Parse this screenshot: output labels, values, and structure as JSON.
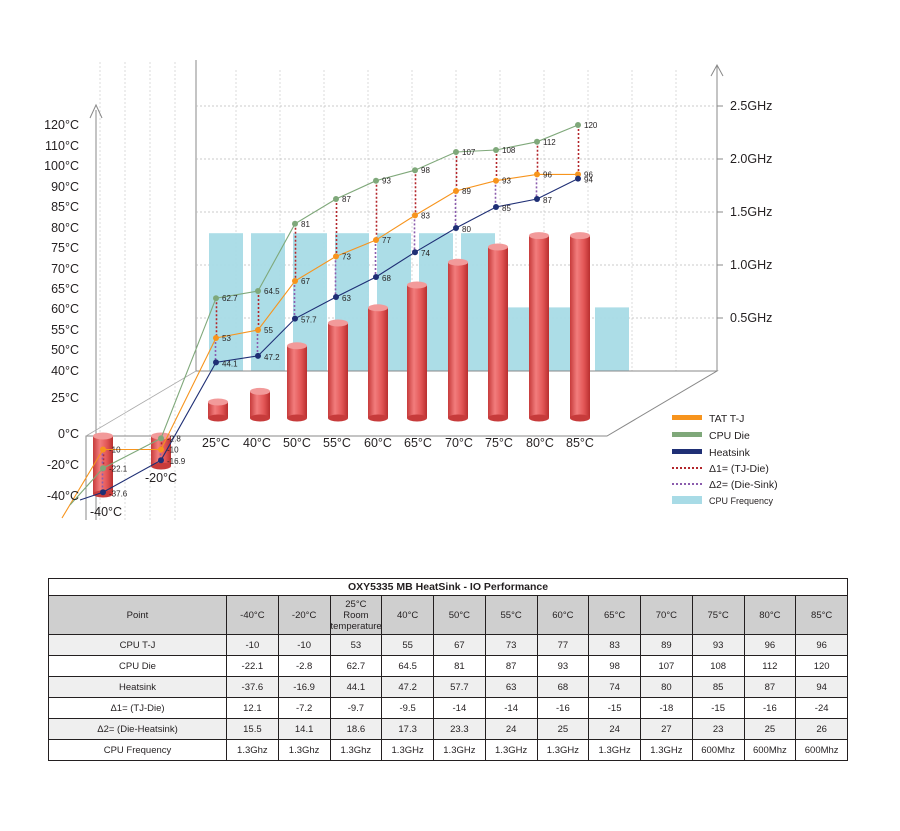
{
  "chart_data": {
    "type": "line",
    "categories": [
      "-40°C",
      "-20°C",
      "25°C",
      "40°C",
      "50°C",
      "55°C",
      "60°C",
      "65°C",
      "70°C",
      "75°C",
      "80°C",
      "85°C"
    ],
    "yticks": [
      "120°C",
      "110°C",
      "100°C",
      "90°C",
      "85°C",
      "80°C",
      "75°C",
      "70°C",
      "65°C",
      "60°C",
      "55°C",
      "50°C",
      "40°C",
      "25°C",
      "0°C",
      "-20°C",
      "-40°C"
    ],
    "ytick_values": [
      120,
      110,
      100,
      90,
      85,
      80,
      75,
      70,
      65,
      60,
      55,
      50,
      40,
      25,
      0,
      -20,
      -40
    ],
    "y2ticks": [
      "2.5GHz",
      "2.0GHz",
      "1.5GHz",
      "1.0GHz",
      "0.5GHz"
    ],
    "y2tick_values": [
      2.5,
      2.0,
      1.5,
      1.0,
      0.5
    ],
    "series": [
      {
        "name": "TAT T-J",
        "color": "#f7941d",
        "values": [
          -10,
          -10,
          53,
          55,
          67,
          73,
          77,
          83,
          89,
          93,
          96,
          96
        ]
      },
      {
        "name": "CPU Die",
        "color": "#7fa87a",
        "values": [
          -22.1,
          -2.8,
          62.7,
          64.5,
          81,
          87,
          93,
          98,
          107,
          108,
          112,
          120
        ]
      },
      {
        "name": "Heatsink",
        "color": "#1f2f75",
        "values": [
          -37.6,
          -16.9,
          44.1,
          47.2,
          57.7,
          63,
          68,
          74,
          80,
          85,
          87,
          94
        ]
      }
    ],
    "delta1": {
      "name": "Δ1= (TJ-Die)",
      "color": "#b3262b"
    },
    "delta2": {
      "name": "Δ2= (Die-Sink)",
      "color": "#8b5cad"
    },
    "frequency": {
      "name": "CPU Frequency",
      "color": "#a8dbe6",
      "values_ghz": [
        1.3,
        1.3,
        1.3,
        1.3,
        1.3,
        1.3,
        1.3,
        1.3,
        1.3,
        0.6,
        0.6,
        0.6
      ]
    },
    "cylinder_color": "#e25555",
    "legend_position": "right"
  },
  "table": {
    "title": "OXY5335 MB HeatSink - IO Performance",
    "headers": [
      "Point",
      "-40°C",
      "-20°C",
      "25°C\nRoom\ntemperature",
      "40°C",
      "50°C",
      "55°C",
      "60°C",
      "65°C",
      "70°C",
      "75°C",
      "80°C",
      "85°C"
    ],
    "rows": [
      [
        "CPU T-J",
        "-10",
        "-10",
        "53",
        "55",
        "67",
        "73",
        "77",
        "83",
        "89",
        "93",
        "96",
        "96"
      ],
      [
        "CPU Die",
        "-22.1",
        "-2.8",
        "62.7",
        "64.5",
        "81",
        "87",
        "93",
        "98",
        "107",
        "108",
        "112",
        "120"
      ],
      [
        "Heatsink",
        "-37.6",
        "-16.9",
        "44.1",
        "47.2",
        "57.7",
        "63",
        "68",
        "74",
        "80",
        "85",
        "87",
        "94"
      ],
      [
        "Δ1= (TJ-Die)",
        "12.1",
        "-7.2",
        "-9.7",
        "-9.5",
        "-14",
        "-14",
        "-16",
        "-15",
        "-18",
        "-15",
        "-16",
        "-24"
      ],
      [
        "Δ2= (Die-Heatsink)",
        "15.5",
        "14.1",
        "18.6",
        "17.3",
        "23.3",
        "24",
        "25",
        "24",
        "27",
        "23",
        "25",
        "26"
      ],
      [
        "CPU Frequency",
        "1.3Ghz",
        "1.3Ghz",
        "1.3Ghz",
        "1.3GHz",
        "1.3GHz",
        "1.3GHz",
        "1.3GHz",
        "1.3GHz",
        "1.3GHz",
        "600Mhz",
        "600Mhz",
        "600Mhz"
      ]
    ]
  }
}
